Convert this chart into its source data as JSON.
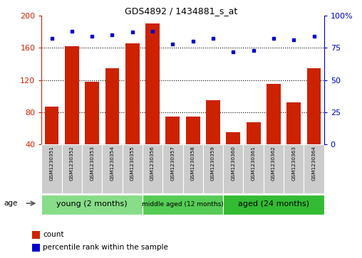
{
  "title": "GDS4892 / 1434881_s_at",
  "samples": [
    "GSM1230351",
    "GSM1230352",
    "GSM1230353",
    "GSM1230354",
    "GSM1230355",
    "GSM1230356",
    "GSM1230357",
    "GSM1230358",
    "GSM1230359",
    "GSM1230360",
    "GSM1230361",
    "GSM1230362",
    "GSM1230363",
    "GSM1230364"
  ],
  "counts": [
    87,
    162,
    118,
    135,
    165,
    190,
    75,
    75,
    95,
    55,
    68,
    115,
    92,
    135
  ],
  "percentiles": [
    82,
    88,
    84,
    85,
    87,
    88,
    78,
    80,
    82,
    72,
    73,
    82,
    81,
    84
  ],
  "bar_color": "#cc2200",
  "dot_color": "#0000cc",
  "ylim_left": [
    40,
    200
  ],
  "ylim_right": [
    0,
    100
  ],
  "yticks_left": [
    40,
    80,
    120,
    160,
    200
  ],
  "yticks_right": [
    0,
    25,
    50,
    75,
    100
  ],
  "ytick_labels_right": [
    "0",
    "25",
    "50",
    "75",
    "100%"
  ],
  "hlines": [
    80,
    120,
    160
  ],
  "groups": [
    {
      "label": "young (2 months)",
      "start": 0,
      "end": 5,
      "color": "#88dd88"
    },
    {
      "label": "middle aged (12 months)",
      "start": 5,
      "end": 9,
      "color": "#55cc55"
    },
    {
      "label": "aged (24 months)",
      "start": 9,
      "end": 14,
      "color": "#33bb33"
    }
  ],
  "age_label": "age",
  "legend_count_label": "count",
  "legend_pct_label": "percentile rank within the sample",
  "bar_width": 0.7,
  "cell_color": "#cccccc",
  "cell_edge_color": "#ffffff"
}
